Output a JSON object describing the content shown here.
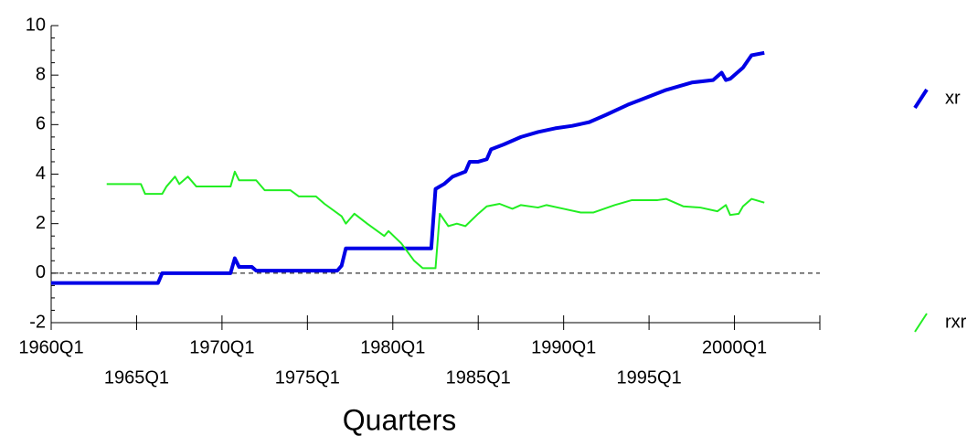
{
  "chart_data": {
    "type": "line",
    "xlabel": "Quarters",
    "xlim": [
      1960,
      2005
    ],
    "xticks": [
      {
        "value": 1960,
        "label": "1960Q1"
      },
      {
        "value": 1965,
        "label": "1965Q1"
      },
      {
        "value": 1970,
        "label": "1970Q1"
      },
      {
        "value": 1975,
        "label": "1975Q1"
      },
      {
        "value": 1980,
        "label": "1980Q1"
      },
      {
        "value": 1985,
        "label": "1985Q1"
      },
      {
        "value": 1990,
        "label": "1990Q1"
      },
      {
        "value": 1995,
        "label": "1995Q1"
      },
      {
        "value": 2000,
        "label": "2000Q1"
      }
    ],
    "ylim": [
      -2,
      10
    ],
    "yticks": [
      -2,
      0,
      2,
      4,
      6,
      8,
      10
    ],
    "reference_line": 0,
    "legend": "right",
    "series": [
      {
        "name": "xr",
        "color": "#0000e6",
        "x": [
          1960,
          1966.25,
          1966.5,
          1970.5,
          1970.75,
          1971,
          1971.75,
          1972,
          1976.75,
          1977,
          1977.25,
          1982.25,
          1982.5,
          1982.75,
          1983,
          1983.5,
          1984.25,
          1984.5,
          1985,
          1985.5,
          1985.75,
          1986.5,
          1987.5,
          1988.5,
          1989.5,
          1990.5,
          1991.5,
          1992.5,
          1993.75,
          1994.5,
          1996,
          1997.5,
          1998.75,
          1999.25,
          1999.5,
          1999.75,
          2000.5,
          2001,
          2001.75
        ],
        "values": [
          -0.4,
          -0.4,
          0,
          0,
          0.6,
          0.25,
          0.25,
          0.1,
          0.1,
          0.3,
          1.0,
          1.0,
          3.4,
          3.5,
          3.6,
          3.9,
          4.1,
          4.5,
          4.5,
          4.6,
          5.0,
          5.2,
          5.5,
          5.7,
          5.85,
          5.95,
          6.1,
          6.4,
          6.8,
          7.0,
          7.4,
          7.7,
          7.8,
          8.1,
          7.8,
          7.85,
          8.3,
          8.8,
          8.9
        ]
      },
      {
        "name": "rxr",
        "color": "#22ee22",
        "x": [
          1963.25,
          1965.25,
          1965.5,
          1966.5,
          1966.75,
          1967.25,
          1967.5,
          1968,
          1968.5,
          1970.5,
          1970.75,
          1971,
          1972,
          1972.5,
          1974,
          1974.5,
          1975.5,
          1976,
          1977,
          1977.25,
          1977.75,
          1978.5,
          1979.5,
          1979.75,
          1980.5,
          1981.25,
          1981.75,
          1982.5,
          1982.75,
          1983.25,
          1983.75,
          1984.25,
          1985,
          1985.5,
          1986.25,
          1987,
          1987.5,
          1988.5,
          1989,
          1990,
          1991,
          1991.75,
          1993,
          1994,
          1995.5,
          1996,
          1997,
          1998,
          1999,
          1999.5,
          1999.75,
          2000.25,
          2000.5,
          2001,
          2001.75
        ],
        "values": [
          3.6,
          3.6,
          3.2,
          3.2,
          3.5,
          3.9,
          3.6,
          3.9,
          3.5,
          3.5,
          4.1,
          3.75,
          3.75,
          3.35,
          3.35,
          3.1,
          3.1,
          2.8,
          2.3,
          2.0,
          2.4,
          2.0,
          1.5,
          1.7,
          1.2,
          0.5,
          0.2,
          0.2,
          2.4,
          1.9,
          2.0,
          1.9,
          2.4,
          2.7,
          2.8,
          2.6,
          2.75,
          2.65,
          2.75,
          2.6,
          2.45,
          2.45,
          2.75,
          2.95,
          2.95,
          3.0,
          2.7,
          2.65,
          2.5,
          2.75,
          2.35,
          2.4,
          2.7,
          3.0,
          2.85
        ]
      }
    ]
  }
}
